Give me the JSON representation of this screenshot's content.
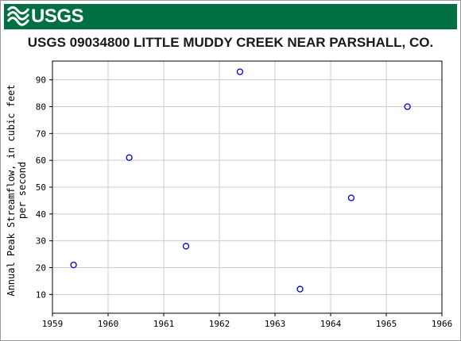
{
  "brand": {
    "logo_text": "USGS",
    "banner_color": "#006f41"
  },
  "chart_data": {
    "type": "scatter",
    "title": "USGS 09034800 LITTLE MUDDY CREEK NEAR PARSHALL, CO.",
    "xlabel": "",
    "ylabel": [
      "Annual Peak Streamflow, in cubic feet",
      "per second"
    ],
    "xlim": [
      1959,
      1966
    ],
    "ylim": [
      3,
      97
    ],
    "xticks": [
      "1959",
      "1960",
      "1961",
      "1962",
      "1963",
      "1964",
      "1965",
      "1966"
    ],
    "yticks": [
      "10",
      "20",
      "30",
      "40",
      "50",
      "60",
      "70",
      "80",
      "90"
    ],
    "grid": true,
    "marker_color": "#0000cc",
    "points": [
      {
        "x": 1959.38,
        "y": 21
      },
      {
        "x": 1960.38,
        "y": 61
      },
      {
        "x": 1961.4,
        "y": 28
      },
      {
        "x": 1962.37,
        "y": 93
      },
      {
        "x": 1963.45,
        "y": 12
      },
      {
        "x": 1964.37,
        "y": 46
      },
      {
        "x": 1965.38,
        "y": 80
      }
    ]
  }
}
